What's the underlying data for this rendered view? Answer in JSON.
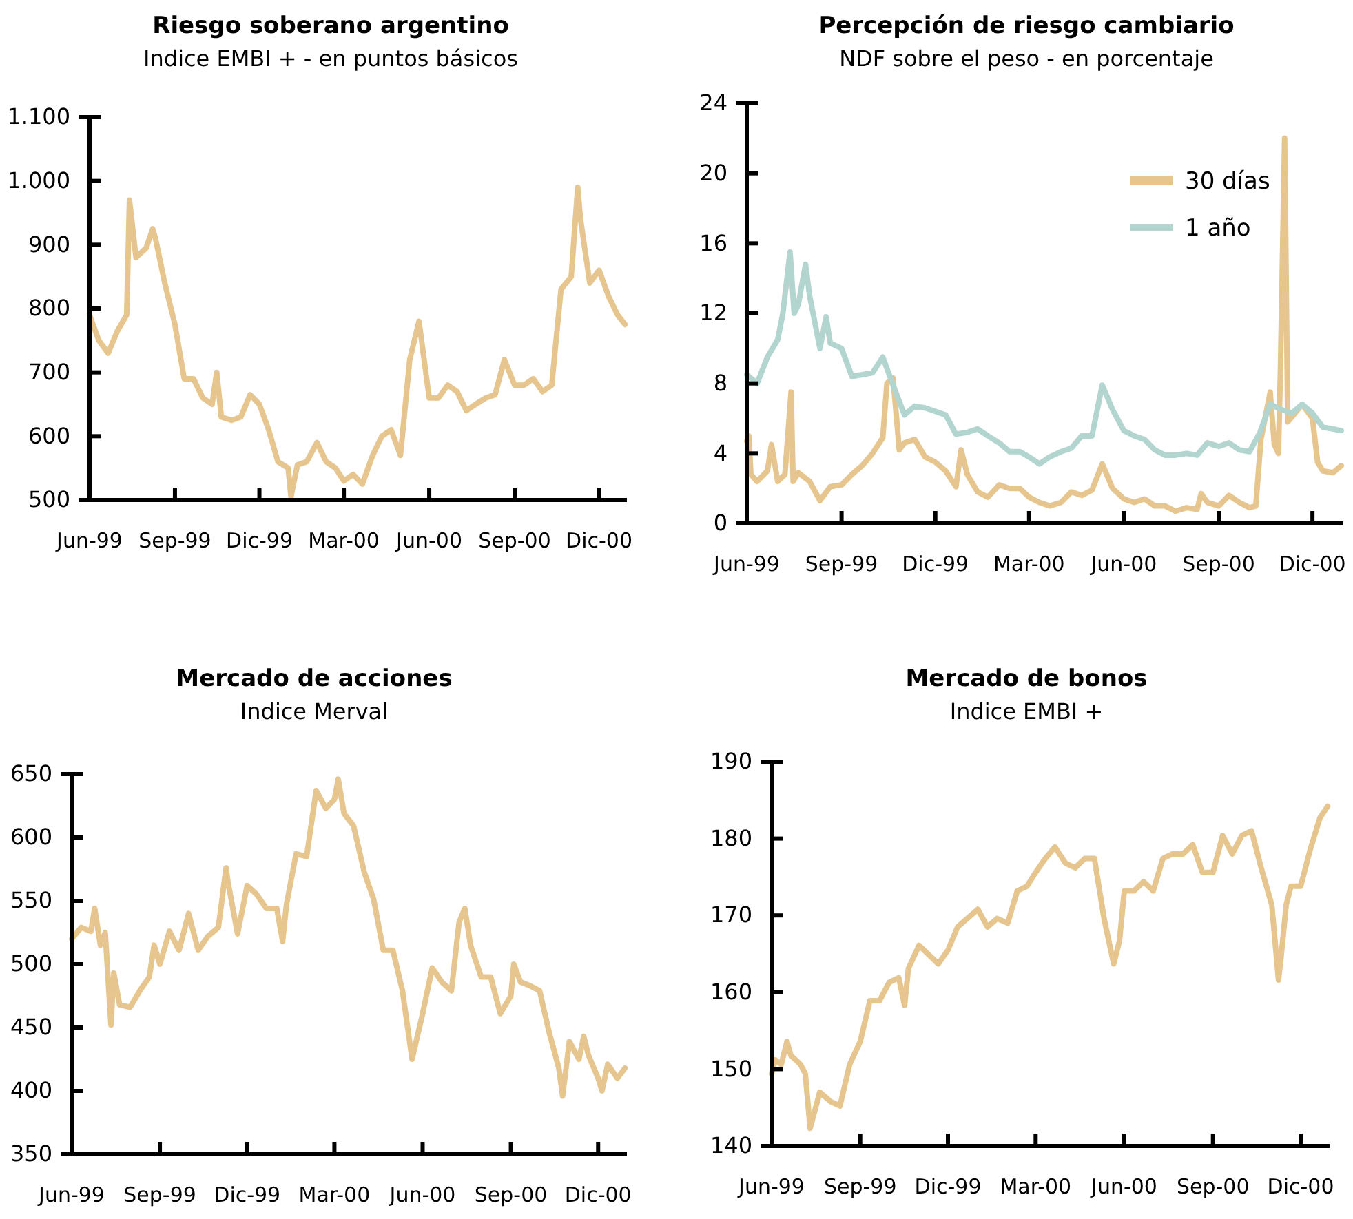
{
  "chart_data": [
    {
      "type": "line",
      "title": "Riesgo soberano argentino",
      "subtitle": "Indice EMBI + - en puntos básicos",
      "ylim": [
        500,
        1100
      ],
      "yticks": [
        500,
        600,
        700,
        800,
        900,
        {
          "value": 1000,
          "label": "1.000"
        },
        {
          "value": 1100,
          "label": "1.100"
        }
      ],
      "xlim": [
        "1999-06-01",
        "2000-12-31"
      ],
      "xticks": [
        {
          "value": "1999-06-01",
          "label": "Jun-99"
        },
        {
          "value": "1999-09-01",
          "label": "Sep-99"
        },
        {
          "value": "1999-12-01",
          "label": "Dic-99"
        },
        {
          "value": "2000-03-01",
          "label": "Mar-00"
        },
        {
          "value": "2000-06-01",
          "label": "Jun-00"
        },
        {
          "value": "2000-09-01",
          "label": "Sep-00"
        },
        {
          "value": "2000-12-01",
          "label": "Dic-00"
        }
      ],
      "series": [
        {
          "color": "#e6c68e",
          "x": [
            "1999-06-01",
            "1999-06-11",
            "1999-06-21",
            "1999-07-01",
            "1999-07-11",
            "1999-07-14",
            "1999-07-21",
            "1999-08-01",
            "1999-08-08",
            "1999-08-11",
            "1999-08-21",
            "1999-09-01",
            "1999-09-11",
            "1999-09-21",
            "1999-10-01",
            "1999-10-11",
            "1999-10-16",
            "1999-10-21",
            "1999-11-01",
            "1999-11-11",
            "1999-11-21",
            "1999-12-01",
            "1999-12-11",
            "1999-12-21",
            "2000-01-01",
            "2000-01-04",
            "2000-01-11",
            "2000-01-21",
            "2000-02-01",
            "2000-02-11",
            "2000-02-21",
            "2000-03-01",
            "2000-03-11",
            "2000-03-21",
            "2000-04-01",
            "2000-04-11",
            "2000-04-21",
            "2000-05-01",
            "2000-05-11",
            "2000-05-21",
            "2000-06-01",
            "2000-06-11",
            "2000-06-21",
            "2000-07-01",
            "2000-07-11",
            "2000-07-21",
            "2000-08-01",
            "2000-08-11",
            "2000-08-21",
            "2000-09-01",
            "2000-09-11",
            "2000-09-21",
            "2000-10-01",
            "2000-10-11",
            "2000-10-21",
            "2000-11-01",
            "2000-11-08",
            "2000-11-11",
            "2000-11-21",
            "2000-12-01",
            "2000-12-11",
            "2000-12-21",
            "2000-12-29"
          ],
          "values": [
            790,
            750,
            730,
            765,
            790,
            970,
            880,
            895,
            925,
            910,
            840,
            775,
            690,
            690,
            660,
            650,
            700,
            630,
            625,
            630,
            665,
            650,
            610,
            560,
            550,
            505,
            555,
            560,
            590,
            560,
            550,
            530,
            540,
            525,
            570,
            600,
            610,
            570,
            720,
            780,
            660,
            660,
            680,
            670,
            640,
            650,
            660,
            665,
            720,
            680,
            680,
            690,
            670,
            680,
            830,
            850,
            990,
            940,
            840,
            860,
            820,
            790,
            775
          ]
        }
      ]
    },
    {
      "type": "line",
      "title": "Percepción de riesgo cambiario",
      "subtitle": "NDF sobre el peso - en porcentaje",
      "ylim": [
        0,
        24
      ],
      "yticks": [
        0,
        4,
        8,
        12,
        16,
        20,
        24
      ],
      "legend": "top right",
      "xlim": [
        "1999-06-01",
        "2000-12-31"
      ],
      "xticks": [
        {
          "value": "1999-06-01",
          "label": "Jun-99"
        },
        {
          "value": "1999-09-01",
          "label": "Sep-99"
        },
        {
          "value": "1999-12-01",
          "label": "Dic-99"
        },
        {
          "value": "2000-03-01",
          "label": "Mar-00"
        },
        {
          "value": "2000-06-01",
          "label": "Jun-00"
        },
        {
          "value": "2000-09-01",
          "label": "Sep-00"
        },
        {
          "value": "2000-12-01",
          "label": "Dic-00"
        }
      ],
      "series": [
        {
          "name": "30 días",
          "color": "#e6c68e",
          "x": [
            "1999-06-01",
            "1999-06-03",
            "1999-06-05",
            "1999-06-11",
            "1999-06-21",
            "1999-06-25",
            "1999-07-01",
            "1999-07-08",
            "1999-07-14",
            "1999-07-16",
            "1999-07-21",
            "1999-08-01",
            "1999-08-11",
            "1999-08-21",
            "1999-09-01",
            "1999-09-11",
            "1999-09-21",
            "1999-10-01",
            "1999-10-11",
            "1999-10-15",
            "1999-10-21",
            "1999-10-27",
            "1999-11-01",
            "1999-11-11",
            "1999-11-21",
            "1999-12-01",
            "1999-12-11",
            "1999-12-21",
            "1999-12-26",
            "2000-01-01",
            "2000-01-11",
            "2000-01-21",
            "2000-02-01",
            "2000-02-11",
            "2000-02-21",
            "2000-03-01",
            "2000-03-11",
            "2000-03-21",
            "2000-04-01",
            "2000-04-11",
            "2000-04-21",
            "2000-05-01",
            "2000-05-11",
            "2000-05-21",
            "2000-06-01",
            "2000-06-11",
            "2000-06-21",
            "2000-07-01",
            "2000-07-11",
            "2000-07-21",
            "2000-08-01",
            "2000-08-11",
            "2000-08-15",
            "2000-08-21",
            "2000-09-01",
            "2000-09-11",
            "2000-09-21",
            "2000-10-01",
            "2000-10-07",
            "2000-10-12",
            "2000-10-21",
            "2000-10-25",
            "2000-10-29",
            "2000-10-31",
            "2000-11-04",
            "2000-11-07",
            "2000-11-21",
            "2000-12-01",
            "2000-12-06",
            "2000-12-11",
            "2000-12-21",
            "2000-12-29"
          ],
          "values": [
            4.7,
            5.0,
            2.8,
            2.4,
            3.0,
            4.5,
            2.4,
            2.8,
            7.5,
            2.4,
            2.9,
            2.4,
            1.3,
            2.1,
            2.2,
            2.8,
            3.3,
            4.0,
            4.9,
            8.0,
            8.3,
            4.2,
            4.6,
            4.8,
            3.8,
            3.5,
            3.0,
            2.1,
            4.2,
            2.8,
            1.8,
            1.5,
            2.2,
            2.0,
            2.0,
            1.5,
            1.2,
            1.0,
            1.2,
            1.8,
            1.6,
            1.9,
            3.4,
            2.0,
            1.4,
            1.2,
            1.4,
            1.0,
            1.0,
            0.7,
            0.9,
            0.8,
            1.7,
            1.2,
            1.0,
            1.6,
            1.2,
            0.9,
            1.0,
            4.8,
            7.5,
            4.5,
            4.0,
            9.0,
            22.0,
            5.8,
            6.8,
            6.0,
            3.5,
            3.0,
            2.9,
            3.3
          ]
        },
        {
          "name": "1 año",
          "color": "#b3d5cf",
          "x": [
            "1999-06-01",
            "1999-06-11",
            "1999-06-21",
            "1999-07-01",
            "1999-07-06",
            "1999-07-13",
            "1999-07-17",
            "1999-07-21",
            "1999-07-28",
            "1999-08-01",
            "1999-08-11",
            "1999-08-17",
            "1999-08-21",
            "1999-09-01",
            "1999-09-11",
            "1999-09-21",
            "1999-10-01",
            "1999-10-11",
            "1999-10-21",
            "1999-11-01",
            "1999-11-11",
            "1999-11-21",
            "1999-12-01",
            "1999-12-11",
            "1999-12-21",
            "2000-01-01",
            "2000-01-11",
            "2000-01-21",
            "2000-02-01",
            "2000-02-11",
            "2000-02-21",
            "2000-03-01",
            "2000-03-11",
            "2000-03-21",
            "2000-04-01",
            "2000-04-11",
            "2000-04-21",
            "2000-05-01",
            "2000-05-11",
            "2000-05-21",
            "2000-06-01",
            "2000-06-11",
            "2000-06-21",
            "2000-07-01",
            "2000-07-11",
            "2000-07-21",
            "2000-08-01",
            "2000-08-11",
            "2000-08-21",
            "2000-09-01",
            "2000-09-11",
            "2000-09-21",
            "2000-10-01",
            "2000-10-11",
            "2000-10-21",
            "2000-11-01",
            "2000-11-11",
            "2000-11-21",
            "2000-12-01",
            "2000-12-11",
            "2000-12-21",
            "2000-12-29"
          ],
          "values": [
            8.5,
            8.0,
            9.5,
            10.5,
            12.0,
            15.5,
            12.0,
            12.5,
            14.8,
            13.0,
            10.0,
            11.8,
            10.3,
            10.0,
            8.4,
            8.5,
            8.6,
            9.5,
            7.9,
            6.2,
            6.7,
            6.6,
            6.4,
            6.2,
            5.1,
            5.2,
            5.4,
            5.0,
            4.6,
            4.1,
            4.1,
            3.8,
            3.4,
            3.8,
            4.1,
            4.3,
            5.0,
            5.0,
            7.9,
            6.5,
            5.3,
            5.0,
            4.8,
            4.2,
            3.9,
            3.9,
            4.0,
            3.9,
            4.6,
            4.4,
            4.6,
            4.2,
            4.1,
            5.2,
            6.8,
            6.5,
            6.3,
            6.8,
            6.3,
            5.5,
            5.4,
            5.3
          ]
        }
      ]
    },
    {
      "type": "line",
      "title": "Mercado de acciones",
      "subtitle": "Indice Merval",
      "ylim": [
        350,
        650
      ],
      "yticks": [
        350,
        400,
        450,
        500,
        550,
        600,
        650
      ],
      "xlim": [
        "1999-06-01",
        "2000-12-31"
      ],
      "xticks": [
        {
          "value": "1999-06-01",
          "label": "Jun-99"
        },
        {
          "value": "1999-09-01",
          "label": "Sep-99"
        },
        {
          "value": "1999-12-01",
          "label": "Dic-99"
        },
        {
          "value": "2000-03-01",
          "label": "Mar-00"
        },
        {
          "value": "2000-06-01",
          "label": "Jun-00"
        },
        {
          "value": "2000-09-01",
          "label": "Sep-00"
        },
        {
          "value": "2000-12-01",
          "label": "Dic-00"
        }
      ],
      "series": [
        {
          "color": "#e6c68e",
          "x": [
            "1999-06-01",
            "1999-06-11",
            "1999-06-21",
            "1999-06-25",
            "1999-07-01",
            "1999-07-06",
            "1999-07-12",
            "1999-07-15",
            "1999-07-21",
            "1999-08-01",
            "1999-08-11",
            "1999-08-21",
            "1999-08-26",
            "1999-09-01",
            "1999-09-11",
            "1999-09-21",
            "1999-10-01",
            "1999-10-11",
            "1999-10-21",
            "1999-11-01",
            "1999-11-09",
            "1999-11-11",
            "1999-11-21",
            "1999-12-01",
            "1999-12-11",
            "1999-12-21",
            "2000-01-01",
            "2000-01-07",
            "2000-01-11",
            "2000-01-21",
            "2000-02-01",
            "2000-02-11",
            "2000-02-21",
            "2000-03-01",
            "2000-03-05",
            "2000-03-11",
            "2000-03-21",
            "2000-04-01",
            "2000-04-11",
            "2000-04-21",
            "2000-05-01",
            "2000-05-11",
            "2000-05-21",
            "2000-06-01",
            "2000-06-11",
            "2000-06-21",
            "2000-07-01",
            "2000-07-09",
            "2000-07-15",
            "2000-07-21",
            "2000-08-01",
            "2000-08-11",
            "2000-08-21",
            "2000-09-01",
            "2000-09-04",
            "2000-09-11",
            "2000-09-21",
            "2000-10-01",
            "2000-10-11",
            "2000-10-21",
            "2000-10-25",
            "2000-11-01",
            "2000-11-11",
            "2000-11-16",
            "2000-11-21",
            "2000-12-01",
            "2000-12-05",
            "2000-12-11",
            "2000-12-21",
            "2000-12-29"
          ],
          "values": [
            520,
            529,
            526,
            544,
            515,
            525,
            452,
            493,
            468,
            466,
            479,
            490,
            515,
            500,
            526,
            511,
            540,
            511,
            522,
            529,
            576,
            565,
            524,
            562,
            555,
            544,
            544,
            518,
            547,
            587,
            585,
            637,
            623,
            630,
            646,
            619,
            609,
            573,
            551,
            511,
            511,
            479,
            425,
            461,
            497,
            486,
            479,
            533,
            544,
            515,
            490,
            490,
            461,
            475,
            500,
            486,
            483,
            479,
            446,
            418,
            396,
            439,
            425,
            443,
            428,
            410,
            400,
            421,
            410,
            418
          ]
        }
      ]
    },
    {
      "type": "line",
      "title": "Mercado de bonos",
      "subtitle": "Indice EMBI +",
      "ylim": [
        140,
        190
      ],
      "yticks": [
        140,
        150,
        160,
        170,
        180,
        190
      ],
      "xlim": [
        "1999-06-01",
        "2000-12-31"
      ],
      "xticks": [
        {
          "value": "1999-06-01",
          "label": "Jun-99"
        },
        {
          "value": "1999-09-01",
          "label": "Sep-99"
        },
        {
          "value": "1999-12-01",
          "label": "Dic-99"
        },
        {
          "value": "2000-03-01",
          "label": "Mar-00"
        },
        {
          "value": "2000-06-01",
          "label": "Jun-00"
        },
        {
          "value": "2000-09-01",
          "label": "Sep-00"
        },
        {
          "value": "2000-12-01",
          "label": "Dic-00"
        }
      ],
      "series": [
        {
          "color": "#e6c68e",
          "x": [
            "1999-06-01",
            "1999-06-05",
            "1999-06-11",
            "1999-06-17",
            "1999-06-21",
            "1999-07-01",
            "1999-07-06",
            "1999-07-11",
            "1999-07-21",
            "1999-08-01",
            "1999-08-11",
            "1999-08-21",
            "1999-09-01",
            "1999-09-11",
            "1999-09-21",
            "1999-10-01",
            "1999-10-11",
            "1999-10-17",
            "1999-10-21",
            "1999-11-01",
            "1999-11-11",
            "1999-11-21",
            "1999-12-01",
            "1999-12-11",
            "1999-12-21",
            "2000-01-01",
            "2000-01-11",
            "2000-01-21",
            "2000-02-01",
            "2000-02-11",
            "2000-02-21",
            "2000-03-01",
            "2000-03-11",
            "2000-03-21",
            "2000-04-01",
            "2000-04-11",
            "2000-04-21",
            "2000-05-01",
            "2000-05-11",
            "2000-05-21",
            "2000-05-27",
            "2000-06-01",
            "2000-06-11",
            "2000-06-21",
            "2000-07-01",
            "2000-07-11",
            "2000-07-21",
            "2000-08-01",
            "2000-08-11",
            "2000-08-21",
            "2000-09-01",
            "2000-09-11",
            "2000-09-21",
            "2000-10-01",
            "2000-10-11",
            "2000-10-21",
            "2000-11-01",
            "2000-11-08",
            "2000-11-11",
            "2000-11-16",
            "2000-11-21",
            "2000-12-01",
            "2000-12-11",
            "2000-12-21",
            "2000-12-29"
          ],
          "values": [
            149.4,
            151.2,
            150.6,
            153.6,
            151.8,
            150.6,
            149.4,
            142.3,
            147.0,
            145.8,
            145.2,
            150.6,
            153.6,
            158.9,
            158.9,
            161.3,
            161.9,
            158.3,
            163.1,
            166.1,
            164.9,
            163.7,
            165.5,
            168.5,
            169.6,
            170.8,
            168.5,
            169.6,
            169.0,
            173.2,
            173.8,
            175.6,
            177.4,
            178.9,
            176.8,
            176.2,
            177.4,
            177.4,
            169.6,
            163.7,
            166.7,
            173.2,
            173.2,
            174.4,
            173.2,
            177.4,
            178.0,
            178.0,
            179.2,
            175.6,
            175.6,
            180.4,
            178.0,
            180.4,
            181.0,
            176.2,
            171.4,
            161.6,
            165.0,
            171.4,
            173.8,
            173.8,
            178.6,
            182.7,
            184.2
          ]
        }
      ]
    }
  ]
}
